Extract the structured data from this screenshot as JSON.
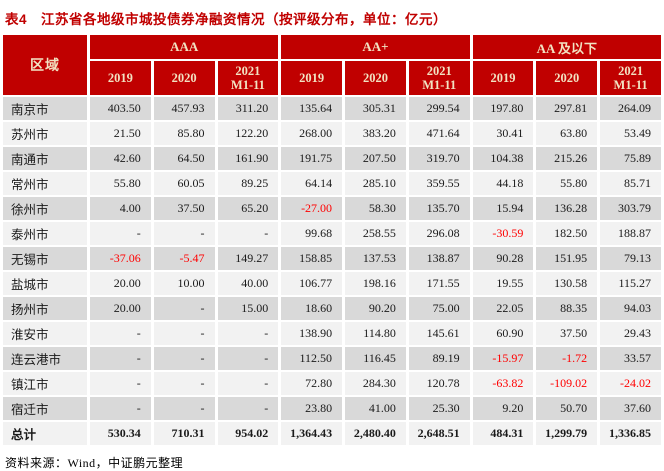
{
  "title": "表4　江苏省各地级市城投债券净融资情况（按评级分布，单位：亿元）",
  "source": "资料来源：Wind，中证鹏元整理",
  "colors": {
    "header_bg": "#C00000",
    "header_text": "#F2E2C2",
    "title_text": "#C00000",
    "row_odd_bg": "#D9D9D9",
    "row_even_bg": "#F2F2F2",
    "negative_text": "#FF0000"
  },
  "table": {
    "region_header": "区域",
    "groups": [
      {
        "label": "AAA",
        "years": [
          "2019",
          "2020",
          "2021\nM1-11"
        ]
      },
      {
        "label": "AA+",
        "years": [
          "2019",
          "2020",
          "2021\nM1-11"
        ]
      },
      {
        "label": "AA 及以下",
        "years": [
          "2019",
          "2020",
          "2021\nM1-11"
        ]
      }
    ],
    "rows": [
      {
        "region": "南京市",
        "values": [
          "403.50",
          "457.93",
          "311.20",
          "135.64",
          "305.31",
          "299.54",
          "197.80",
          "297.81",
          "264.09"
        ]
      },
      {
        "region": "苏州市",
        "values": [
          "21.50",
          "85.80",
          "122.20",
          "268.00",
          "383.20",
          "471.64",
          "30.41",
          "63.80",
          "53.49"
        ]
      },
      {
        "region": "南通市",
        "values": [
          "42.60",
          "64.50",
          "161.90",
          "191.75",
          "207.50",
          "319.70",
          "104.38",
          "215.26",
          "75.89"
        ]
      },
      {
        "region": "常州市",
        "values": [
          "55.80",
          "60.05",
          "89.25",
          "64.14",
          "285.10",
          "359.55",
          "44.18",
          "55.80",
          "85.71"
        ]
      },
      {
        "region": "徐州市",
        "values": [
          "4.00",
          "37.50",
          "65.20",
          "-27.00",
          "58.30",
          "135.70",
          "15.94",
          "136.28",
          "303.79"
        ]
      },
      {
        "region": "泰州市",
        "values": [
          "-",
          "-",
          "-",
          "99.68",
          "258.55",
          "296.08",
          "-30.59",
          "182.50",
          "188.87"
        ]
      },
      {
        "region": "无锡市",
        "values": [
          "-37.06",
          "-5.47",
          "149.27",
          "158.85",
          "137.53",
          "138.87",
          "90.28",
          "151.95",
          "79.13"
        ]
      },
      {
        "region": "盐城市",
        "values": [
          "20.00",
          "10.00",
          "40.00",
          "106.77",
          "198.16",
          "171.55",
          "19.55",
          "130.58",
          "115.27"
        ]
      },
      {
        "region": "扬州市",
        "values": [
          "20.00",
          "-",
          "15.00",
          "18.60",
          "90.20",
          "75.00",
          "22.05",
          "88.35",
          "94.03"
        ]
      },
      {
        "region": "淮安市",
        "values": [
          "-",
          "-",
          "-",
          "138.90",
          "114.80",
          "145.61",
          "60.90",
          "37.50",
          "29.43"
        ]
      },
      {
        "region": "连云港市",
        "values": [
          "-",
          "-",
          "-",
          "112.50",
          "116.45",
          "89.19",
          "-15.97",
          "-1.72",
          "33.57"
        ]
      },
      {
        "region": "镇江市",
        "values": [
          "-",
          "-",
          "-",
          "72.80",
          "284.30",
          "120.78",
          "-63.82",
          "-109.02",
          "-24.02"
        ]
      },
      {
        "region": "宿迁市",
        "values": [
          "-",
          "-",
          "-",
          "23.80",
          "41.00",
          "25.30",
          "9.20",
          "50.70",
          "37.60"
        ]
      }
    ],
    "total_row": {
      "region": "总计",
      "values": [
        "530.34",
        "710.31",
        "954.02",
        "1,364.43",
        "2,480.40",
        "2,648.51",
        "484.31",
        "1,299.79",
        "1,336.85"
      ]
    }
  }
}
